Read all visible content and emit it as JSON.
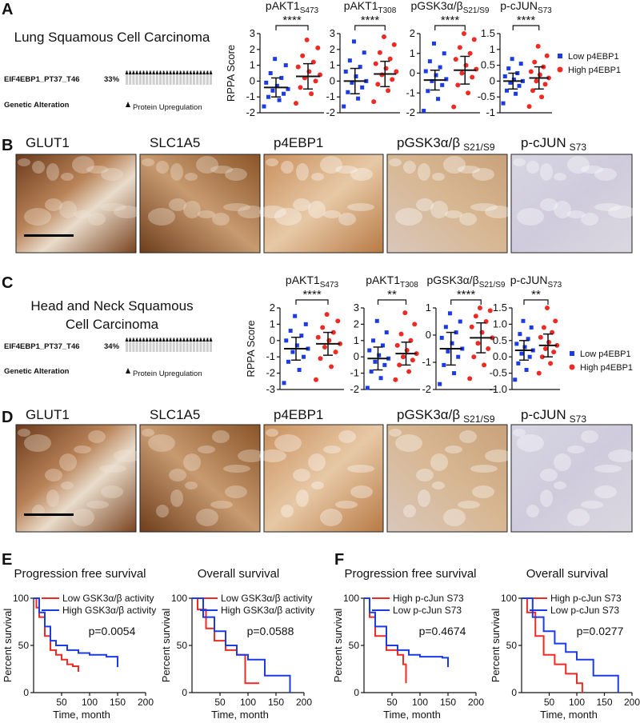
{
  "panel_labels": [
    "A",
    "B",
    "C",
    "D",
    "E",
    "F"
  ],
  "oncoprints": [
    {
      "cancer": [
        "Lung Squamous Cell Carcinoma"
      ],
      "gene": "EIF4EBP1_PT37_T46",
      "frequency": "33%",
      "track": "Genetic Alteration",
      "legend": "Protein Upregulation"
    },
    {
      "cancer": [
        "Head and Neck Squamous",
        "Cell Carcinoma"
      ],
      "gene": "EIF4EBP1_PT37_T46",
      "frequency": "34%",
      "track": "Genetic Alteration",
      "legend": "Protein Upregulation"
    }
  ],
  "ihc_rows": [
    [
      {
        "label": "GLUT1"
      },
      {
        "label": "SLC1A5"
      },
      {
        "label": "p4EBP1"
      },
      {
        "label": "pGSK3α/β",
        "sub": "S21/S9"
      },
      {
        "label": "p-cJUN",
        "sub": "S73"
      }
    ],
    [
      {
        "label": "GLUT1"
      },
      {
        "label": "SLC1A5"
      },
      {
        "label": "p4EBP1"
      },
      {
        "label": "pGSK3α/β",
        "sub": "S21/S9"
      },
      {
        "label": "p-cJUN",
        "sub": "S73"
      }
    ]
  ],
  "chart_data": [
    {
      "type": "dotplot",
      "title": "pAKT1",
      "title_sub": "S473",
      "ylabel": "RPPA Score",
      "ylim": [
        -2,
        3
      ],
      "yticks": [
        -2,
        -1,
        0,
        1,
        2,
        3
      ],
      "significance": "****",
      "series": [
        {
          "color": "#1b3be6",
          "marker": "square",
          "values": [
            -1.6,
            -1.2,
            -1,
            -0.8,
            -0.6,
            -0.5,
            -0.3,
            -0.1,
            0.2,
            0.5,
            1.0,
            1.4
          ],
          "mean": -0.4,
          "sd": 0.6
        },
        {
          "color": "#ee2a24",
          "marker": "circle",
          "values": [
            -1.4,
            -0.8,
            -0.4,
            0,
            0.2,
            0.4,
            0.6,
            0.9,
            1.2,
            1.6,
            2.1,
            2.6
          ],
          "mean": 0.3,
          "sd": 0.8
        }
      ]
    },
    {
      "type": "dotplot",
      "title": "pAKT1",
      "title_sub": "T308",
      "ylim": [
        -2,
        3
      ],
      "yticks": [
        -2,
        -1,
        0,
        1,
        2,
        3
      ],
      "significance": "****",
      "series": [
        {
          "color": "#1b3be6",
          "marker": "square",
          "values": [
            -1.6,
            -1.1,
            -0.7,
            -0.4,
            -0.1,
            0,
            0.3,
            0.6,
            0.9,
            1.3,
            1.8,
            2.5
          ],
          "mean": 0,
          "sd": 0.8
        },
        {
          "color": "#ee2a24",
          "marker": "circle",
          "values": [
            -1.3,
            -0.6,
            -0.2,
            0.1,
            0.4,
            0.6,
            0.8,
            1.1,
            1.4,
            1.8,
            2.3,
            2.8
          ],
          "mean": 0.45,
          "sd": 0.8
        }
      ]
    },
    {
      "type": "dotplot",
      "title": "pGSK3α/β",
      "title_sub": "S21/S9",
      "ylim": [
        -2,
        2
      ],
      "yticks": [
        -2,
        -1,
        0,
        1,
        2
      ],
      "significance": "****",
      "series": [
        {
          "color": "#1b3be6",
          "marker": "square",
          "values": [
            -1.9,
            -1.3,
            -0.9,
            -0.6,
            -0.4,
            -0.3,
            -0.1,
            0.1,
            0.3,
            0.6,
            1.0,
            1.5
          ],
          "mean": -0.35,
          "sd": 0.5
        },
        {
          "color": "#ee2a24",
          "marker": "circle",
          "values": [
            -1.7,
            -1,
            -0.6,
            -0.2,
            0,
            0.2,
            0.4,
            0.7,
            1,
            1.3,
            1.7,
            2
          ],
          "mean": 0.15,
          "sd": 0.7
        }
      ]
    },
    {
      "type": "dotplot",
      "title": "p-cJUN",
      "title_sub": "S73",
      "ylim": [
        -1,
        1.5
      ],
      "yticks": [
        -1,
        -0.5,
        0,
        0.5,
        1,
        1.5
      ],
      "significance": "****",
      "series": [
        {
          "name": "Low p4EBP1",
          "color": "#1b3be6",
          "marker": "square",
          "values": [
            -0.7,
            -0.4,
            -0.3,
            -0.15,
            -0.05,
            0,
            0.05,
            0.15,
            0.25,
            0.4,
            0.55,
            0.7
          ],
          "mean": 0,
          "sd": 0.25
        },
        {
          "name": "High p4EBP1",
          "color": "#ee2a24",
          "marker": "circle",
          "values": [
            -0.8,
            -0.5,
            -0.3,
            -0.1,
            0,
            0.1,
            0.2,
            0.3,
            0.45,
            0.6,
            0.8,
            1.1
          ],
          "mean": 0.1,
          "sd": 0.35
        }
      ]
    },
    {
      "type": "dotplot",
      "title": "pAKT1",
      "title_sub": "S473",
      "ylabel": "RPPA Score",
      "ylim": [
        -3,
        2
      ],
      "yticks": [
        -3,
        -2,
        -1,
        0,
        1,
        2
      ],
      "significance": "****",
      "series": [
        {
          "color": "#1b3be6",
          "marker": "square",
          "values": [
            -2.6,
            -1.8,
            -1.3,
            -1,
            -0.7,
            -0.5,
            -0.3,
            0,
            0.3,
            0.6,
            1.0,
            1.5
          ],
          "mean": -0.5,
          "sd": 0.7
        },
        {
          "color": "#ee2a24",
          "marker": "circle",
          "values": [
            -2.4,
            -1.6,
            -1.1,
            -0.7,
            -0.4,
            -0.2,
            0,
            0.2,
            0.5,
            0.8,
            1.2,
            1.6
          ],
          "mean": -0.2,
          "sd": 0.7
        }
      ]
    },
    {
      "type": "dotplot",
      "title": "pAKT1",
      "title_sub": "T308",
      "ylim": [
        -2,
        3
      ],
      "yticks": [
        -2,
        -1,
        0,
        1,
        2,
        3
      ],
      "significance": "**",
      "series": [
        {
          "color": "#1b3be6",
          "marker": "square",
          "values": [
            -1.9,
            -1.3,
            -0.9,
            -0.5,
            -0.3,
            -0.1,
            0.1,
            0.4,
            0.7,
            1,
            1.5,
            2.2
          ],
          "mean": -0.1,
          "sd": 0.7
        },
        {
          "color": "#ee2a24",
          "marker": "circle",
          "values": [
            -1.4,
            -0.9,
            -0.5,
            -0.2,
            0,
            0.2,
            0.4,
            0.7,
            1,
            1.4,
            2,
            2.7
          ],
          "mean": 0.2,
          "sd": 0.7
        }
      ]
    },
    {
      "type": "dotplot",
      "title": "pGSK3α/β",
      "title_sub": "S21/S9",
      "ylim": [
        -2,
        1
      ],
      "yticks": [
        -2,
        -1,
        0,
        1
      ],
      "significance": "****",
      "series": [
        {
          "color": "#1b3be6",
          "marker": "square",
          "values": [
            -1.8,
            -1.4,
            -1.1,
            -0.8,
            -0.6,
            -0.5,
            -0.3,
            -0.1,
            0.1,
            0.3,
            0.5,
            0.8
          ],
          "mean": -0.5,
          "sd": 0.6
        },
        {
          "color": "#ee2a24",
          "marker": "circle",
          "values": [
            -1.6,
            -1.1,
            -0.8,
            -0.5,
            -0.3,
            -0.1,
            0.1,
            0.3,
            0.5,
            0.7,
            0.9,
            1.0
          ],
          "mean": -0.1,
          "sd": 0.55
        }
      ]
    },
    {
      "type": "dotplot",
      "title": "p-cJUN",
      "title_sub": "S73",
      "ylim": [
        -1,
        1.5
      ],
      "yticks": [
        {
          "value": -1,
          "label": "-1.0"
        },
        {
          "value": -0.5,
          "label": "-0.5"
        },
        {
          "value": 0,
          "label": "0.0"
        },
        {
          "value": 0.5,
          "label": "0.5"
        },
        {
          "value": 1,
          "label": "1.0"
        },
        {
          "value": 1.5,
          "label": "1.5"
        }
      ],
      "significance": "**",
      "series": [
        {
          "name": "Low p4EBP1",
          "color": "#1b3be6",
          "marker": "square",
          "values": [
            -0.7,
            -0.4,
            -0.2,
            0,
            0.1,
            0.2,
            0.3,
            0.4,
            0.55,
            0.7,
            0.9,
            1.1
          ],
          "mean": 0.2,
          "sd": 0.3
        },
        {
          "name": "High p4EBP1",
          "color": "#ee2a24",
          "marker": "circle",
          "values": [
            -0.5,
            -0.2,
            0,
            0.15,
            0.25,
            0.35,
            0.45,
            0.6,
            0.75,
            0.9,
            1.1,
            1.5
          ],
          "mean": 0.35,
          "sd": 0.35
        }
      ]
    },
    {
      "type": "survival",
      "title": "Progression free survival",
      "xlabel": "Time, month",
      "ylabel": "Percent survival",
      "xlim": [
        0,
        200
      ],
      "xticks": [
        50,
        100,
        150,
        200
      ],
      "ylim": [
        0,
        100
      ],
      "yticks": [
        0,
        50,
        100
      ],
      "annotation": "p=0.0054",
      "series": [
        {
          "name": "Low GSK3α/β activity",
          "color": "#ee2a24",
          "x": [
            0,
            5,
            10,
            20,
            30,
            40,
            50,
            60,
            70,
            80
          ],
          "y": [
            100,
            90,
            80,
            60,
            45,
            40,
            35,
            30,
            28,
            22
          ]
        },
        {
          "name": "High GSK3α/β activity",
          "color": "#1b3be6",
          "x": [
            0,
            10,
            20,
            30,
            40,
            60,
            80,
            100,
            130,
            150
          ],
          "y": [
            100,
            85,
            70,
            55,
            50,
            45,
            42,
            40,
            38,
            27
          ]
        }
      ]
    },
    {
      "type": "survival",
      "title": "Overall survival",
      "xlabel": "Time, month",
      "ylabel": "Percent survival",
      "xlim": [
        0,
        200
      ],
      "xticks": [
        50,
        100,
        150,
        200
      ],
      "ylim": [
        0,
        100
      ],
      "yticks": [
        0,
        50,
        100
      ],
      "annotation": "p=0.0588",
      "series": [
        {
          "name": "Low GSK3α/β activity",
          "color": "#ee2a24",
          "x": [
            0,
            10,
            25,
            40,
            60,
            80,
            95,
            120
          ],
          "y": [
            100,
            88,
            68,
            55,
            45,
            40,
            10,
            10
          ]
        },
        {
          "name": "High GSK3α/β activity",
          "color": "#1b3be6",
          "x": [
            0,
            20,
            40,
            60,
            80,
            100,
            130,
            160,
            175
          ],
          "y": [
            100,
            80,
            65,
            50,
            40,
            35,
            18,
            18,
            0
          ]
        }
      ]
    },
    {
      "type": "survival",
      "title": "Progression free survival",
      "xlabel": "Time, month",
      "ylabel": "Percent survival",
      "xlim": [
        0,
        200
      ],
      "xticks": [
        50,
        100,
        150,
        200
      ],
      "ylim": [
        0,
        100
      ],
      "yticks": [
        0,
        50,
        100
      ],
      "annotation": "p=0.4674",
      "series": [
        {
          "name": "High p-cJun S73",
          "color": "#ee2a24",
          "x": [
            0,
            10,
            20,
            40,
            60,
            70,
            75
          ],
          "y": [
            100,
            80,
            60,
            45,
            40,
            30,
            10
          ]
        },
        {
          "name": "Low p-cJun S73",
          "color": "#1b3be6",
          "x": [
            0,
            10,
            20,
            40,
            60,
            80,
            100,
            140,
            150
          ],
          "y": [
            100,
            85,
            70,
            50,
            45,
            40,
            38,
            37,
            27
          ]
        }
      ]
    },
    {
      "type": "survival",
      "title": "Overall survival",
      "xlabel": "Time, month",
      "ylabel": "Percent survival",
      "xlim": [
        0,
        200
      ],
      "xticks": [
        50,
        100,
        150,
        200
      ],
      "ylim": [
        0,
        100
      ],
      "yticks": [
        0,
        50,
        100
      ],
      "annotation": "p=0.0277",
      "series": [
        {
          "name": "High p-cJun S73",
          "color": "#ee2a24",
          "x": [
            0,
            10,
            25,
            40,
            60,
            80,
            100,
            110
          ],
          "y": [
            100,
            85,
            60,
            40,
            30,
            20,
            10,
            0
          ]
        },
        {
          "name": "Low p-cJun S73",
          "color": "#1b3be6",
          "x": [
            0,
            20,
            40,
            60,
            80,
            100,
            130,
            160,
            175
          ],
          "y": [
            100,
            80,
            65,
            52,
            43,
            35,
            18,
            18,
            0
          ]
        }
      ]
    }
  ]
}
